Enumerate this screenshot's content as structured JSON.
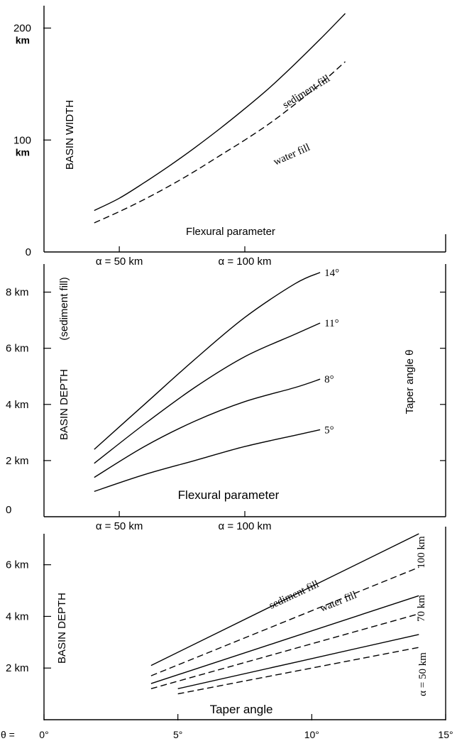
{
  "chart_data": [
    {
      "type": "line",
      "ylabel": "BASIN WIDTH",
      "xlabel": "Flexural parameter",
      "xlim": [
        20,
        180
      ],
      "ylim": [
        0,
        220
      ],
      "y_ticks": [
        {
          "value": 200,
          "label": "200",
          "unit": "km"
        },
        {
          "value": 100,
          "label": "100",
          "unit": "km"
        },
        {
          "value": 0,
          "label": "0",
          "unit": ""
        }
      ],
      "x_ticks": [
        {
          "value": 50,
          "label": "α = 50 km"
        },
        {
          "value": 100,
          "label": "α = 100 km"
        }
      ],
      "series": [
        {
          "name": "sediment fill",
          "style": "solid",
          "x": [
            40,
            50,
            60,
            70,
            80,
            90,
            100,
            110,
            120,
            130,
            140
          ],
          "y": [
            37,
            48,
            62,
            77,
            93,
            110,
            128,
            147,
            168,
            190,
            213
          ]
        },
        {
          "name": "water fill",
          "style": "dashed",
          "x": [
            40,
            50,
            60,
            70,
            80,
            90,
            100,
            110,
            120,
            130,
            140
          ],
          "y": [
            26,
            36,
            47,
            59,
            72,
            86,
            100,
            115,
            132,
            150,
            170
          ]
        }
      ]
    },
    {
      "type": "line",
      "ylabel": "BASIN DEPTH",
      "ylabel2": "(sediment fill)",
      "right_label": "Taper angle θ",
      "xlabel": "Flexural parameter",
      "xlim": [
        20,
        180
      ],
      "ylim": [
        0,
        9
      ],
      "y_ticks": [
        {
          "value": 8,
          "label": "8 km"
        },
        {
          "value": 6,
          "label": "6 km"
        },
        {
          "value": 4,
          "label": "4 km"
        },
        {
          "value": 2,
          "label": "2 km"
        },
        {
          "value": 0,
          "label": "0"
        }
      ],
      "x_ticks": [
        {
          "value": 50,
          "label": "α = 50 km"
        },
        {
          "value": 100,
          "label": "α = 100 km"
        }
      ],
      "series": [
        {
          "name": "14°",
          "style": "solid",
          "x": [
            40,
            60,
            80,
            100,
            120,
            130
          ],
          "y": [
            2.4,
            4.0,
            5.6,
            7.1,
            8.3,
            8.7
          ]
        },
        {
          "name": "11°",
          "style": "solid",
          "x": [
            40,
            60,
            80,
            100,
            120,
            130
          ],
          "y": [
            1.9,
            3.3,
            4.6,
            5.7,
            6.5,
            6.9
          ]
        },
        {
          "name": "8°",
          "style": "solid",
          "x": [
            40,
            60,
            80,
            100,
            120,
            130
          ],
          "y": [
            1.4,
            2.5,
            3.4,
            4.1,
            4.6,
            4.9
          ]
        },
        {
          "name": "5°",
          "style": "solid",
          "x": [
            40,
            60,
            80,
            100,
            120,
            130
          ],
          "y": [
            0.9,
            1.5,
            2.0,
            2.5,
            2.9,
            3.1
          ]
        }
      ]
    },
    {
      "type": "line",
      "ylabel": "BASIN DEPTH",
      "xlabel": "Taper angle",
      "x_prefix": "θ =",
      "xlim": [
        0,
        15
      ],
      "ylim": [
        0,
        7.2
      ],
      "y_ticks": [
        {
          "value": 6,
          "label": "6 km"
        },
        {
          "value": 4,
          "label": "4 km"
        },
        {
          "value": 2,
          "label": "2 km"
        }
      ],
      "x_ticks": [
        {
          "value": 0,
          "label": "0°"
        },
        {
          "value": 5,
          "label": "5°"
        },
        {
          "value": 10,
          "label": "10°"
        },
        {
          "value": 15,
          "label": "15°"
        }
      ],
      "curve_labels": {
        "sediment": "sediment fill",
        "water": "water fill"
      },
      "group_labels": [
        "100 km",
        "70 km",
        "α = 50 km"
      ],
      "series": [
        {
          "group": "100 km",
          "fill": "sediment",
          "style": "solid",
          "x": [
            4,
            14
          ],
          "y": [
            2.1,
            7.2
          ]
        },
        {
          "group": "100 km",
          "fill": "water",
          "style": "dashed",
          "x": [
            4,
            14
          ],
          "y": [
            1.7,
            5.9
          ]
        },
        {
          "group": "70 km",
          "fill": "sediment",
          "style": "solid",
          "x": [
            4,
            14
          ],
          "y": [
            1.4,
            4.8
          ]
        },
        {
          "group": "70 km",
          "fill": "water",
          "style": "dashed",
          "x": [
            4,
            14
          ],
          "y": [
            1.2,
            4.1
          ]
        },
        {
          "group": "α = 50 km",
          "fill": "sediment",
          "style": "solid",
          "x": [
            5,
            14
          ],
          "y": [
            1.2,
            3.3
          ]
        },
        {
          "group": "α = 50 km",
          "fill": "water",
          "style": "dashed",
          "x": [
            5,
            14
          ],
          "y": [
            1.0,
            2.8
          ]
        }
      ]
    }
  ]
}
